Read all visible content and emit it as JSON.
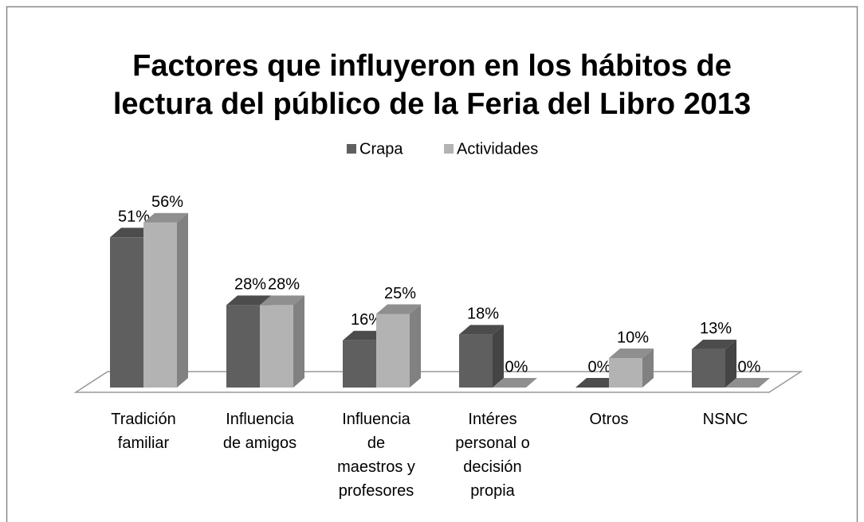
{
  "chart_data": {
    "type": "bar3d",
    "title": [
      "Factores que influyeron en los hábitos de",
      "lectura del público de la Feria del Libro 2013"
    ],
    "categories": [
      "Tradición\nfamiliar",
      "Influencia\nde amigos",
      "Influencia\nde\nmaestros y\nprofesores",
      "Intéres\npersonal o\ndecisión\npropia",
      "Otros",
      "NSNC"
    ],
    "series": [
      {
        "name": "Crapa",
        "color": "#5f5f5f",
        "values": [
          51,
          28,
          16,
          18,
          0,
          13
        ],
        "value_labels": [
          "51%",
          "28%",
          "16%",
          "18%",
          "0%",
          "13%"
        ]
      },
      {
        "name": "Actividades",
        "color": "#b3b3b3",
        "values": [
          56,
          28,
          25,
          0,
          10,
          0
        ],
        "value_labels": [
          "56%",
          "28%",
          "25%",
          "0%",
          "10%",
          "0%"
        ]
      }
    ],
    "legend": "top"
  }
}
